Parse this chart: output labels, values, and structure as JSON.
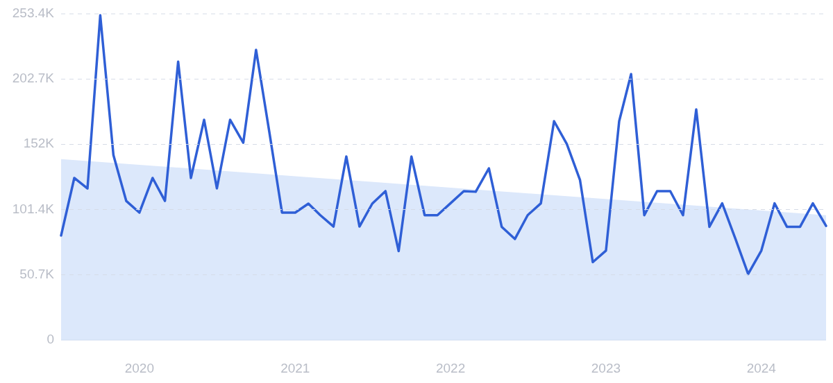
{
  "chart_data": {
    "type": "line",
    "x": [
      "2019-07",
      "2019-08",
      "2019-09",
      "2019-10",
      "2019-11",
      "2019-12",
      "2020-01",
      "2020-02",
      "2020-03",
      "2020-04",
      "2020-05",
      "2020-06",
      "2020-07",
      "2020-08",
      "2020-09",
      "2020-10",
      "2020-11",
      "2020-12",
      "2021-01",
      "2021-02",
      "2021-03",
      "2021-04",
      "2021-05",
      "2021-06",
      "2021-07",
      "2021-08",
      "2021-09",
      "2021-10",
      "2021-11",
      "2021-12",
      "2022-01",
      "2022-02",
      "2022-03",
      "2022-04",
      "2022-05",
      "2022-06",
      "2022-07",
      "2022-08",
      "2022-09",
      "2022-10",
      "2022-11",
      "2022-12",
      "2023-01",
      "2023-02",
      "2023-03",
      "2023-04",
      "2023-05",
      "2023-06",
      "2023-07",
      "2023-08",
      "2023-09",
      "2023-10",
      "2023-11",
      "2023-12",
      "2024-01",
      "2024-02",
      "2024-03",
      "2024-04",
      "2024-05",
      "2024-06"
    ],
    "series": [
      {
        "type": "area",
        "color": "#dce8fb",
        "x": [
          "2019-07",
          "2024-06"
        ],
        "values": [
          140600,
          97000
        ]
      },
      {
        "color": "#2f5fd6",
        "values": [
          81200,
          125900,
          117800,
          252300,
          143600,
          108100,
          99000,
          125900,
          108100,
          216300,
          125900,
          171100,
          117800,
          171100,
          153300,
          225400,
          162000,
          99000,
          99000,
          106000,
          97000,
          88200,
          142600,
          88200,
          106000,
          115700,
          69100,
          142600,
          97000,
          97000,
          106300,
          115700,
          115200,
          133400,
          88000,
          78500,
          97000,
          106200,
          170000,
          152300,
          124300,
          60500,
          69500,
          170000,
          206600,
          97000,
          115700,
          115700,
          97000,
          179200,
          88000,
          106200,
          78800,
          51300,
          69500,
          106200,
          88000,
          88000,
          106200,
          88700
        ]
      }
    ],
    "xlim": [
      "2019-07",
      "2024-06"
    ],
    "xticks": [
      {
        "value": "2020",
        "label": "2020"
      },
      {
        "value": "2021",
        "label": "2021"
      },
      {
        "value": "2022",
        "label": "2022"
      },
      {
        "value": "2023",
        "label": "2023"
      },
      {
        "value": "2024",
        "label": "2024"
      }
    ],
    "ylim": [
      0,
      253400
    ],
    "yticks": [
      {
        "value": 0,
        "label": "0"
      },
      {
        "value": 50700,
        "label": "50.7K"
      },
      {
        "value": 101400,
        "label": "101.4K"
      },
      {
        "value": 152000,
        "label": "152K"
      },
      {
        "value": 202700,
        "label": "202.7K"
      },
      {
        "value": 253400,
        "label": "253.4K"
      }
    ],
    "grid": "y",
    "marker": "none",
    "line_style": "solid"
  }
}
